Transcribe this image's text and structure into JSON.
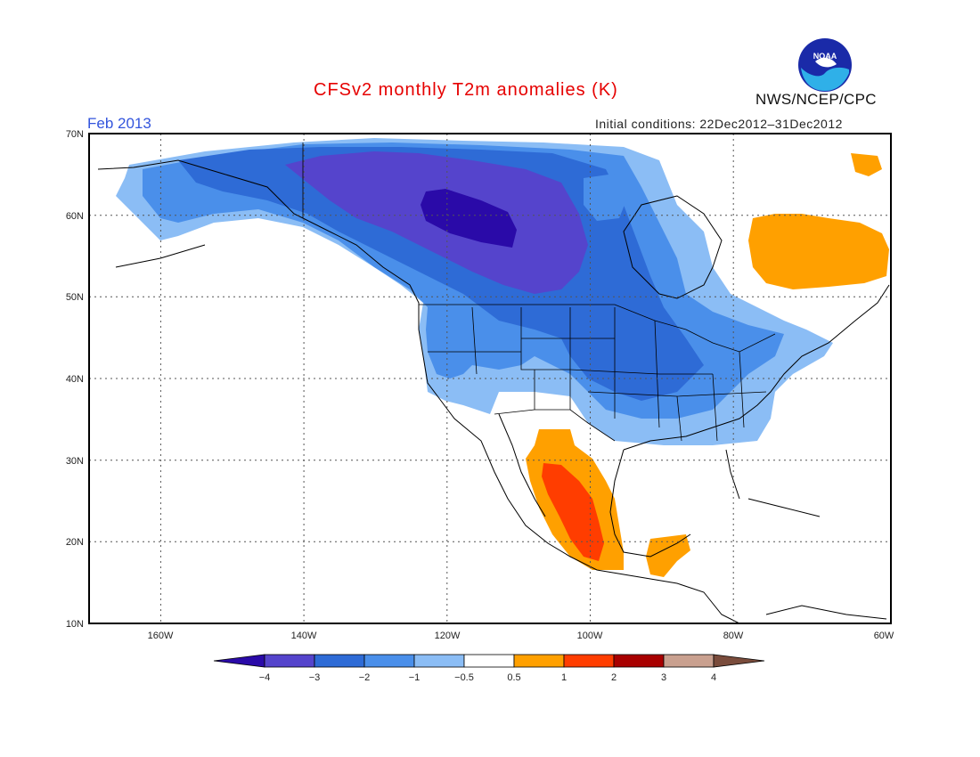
{
  "title": "CFSv2 monthly T2m anomalies (K)",
  "valid_month": "Feb 2013",
  "initial_conditions": "Initial conditions: 22Dec2012–31Dec2012",
  "agency": "NWS/NCEP/CPC",
  "logo": {
    "text": "NOAA",
    "icon": "noaa-logo-icon"
  },
  "map": {
    "projection": "lat-lon",
    "lon_range": [
      -172,
      -60
    ],
    "lat_range": [
      10,
      70
    ],
    "lat_labels": [
      "10N",
      "20N",
      "30N",
      "40N",
      "50N",
      "60N",
      "70N"
    ],
    "lon_labels": [
      "160W",
      "140W",
      "120W",
      "100W",
      "80W",
      "60W"
    ],
    "grid": "dotted"
  },
  "colorbar": {
    "labels": [
      "−4",
      "−3",
      "−2",
      "−1",
      "−0.5",
      "0.5",
      "1",
      "2",
      "3",
      "4"
    ],
    "colors": [
      "#2a0aa8",
      "#5544cc",
      "#2e6bd6",
      "#4a8fea",
      "#8bbdf5",
      "#ffffff",
      "#ffa000",
      "#ff3d00",
      "#a80000",
      "#c9a08f",
      "#7a4c3c"
    ]
  }
}
